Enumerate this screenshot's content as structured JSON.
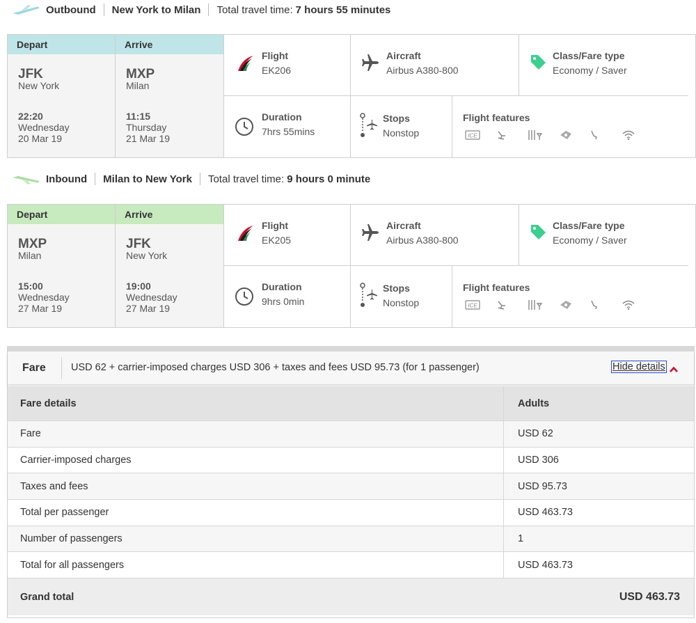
{
  "outbound": {
    "direction": "Outbound",
    "route": "New York to Milan",
    "travel_time_label": "Total travel time:",
    "travel_time_value": "7 hours 55 minutes",
    "depart_header": "Depart",
    "arrive_header": "Arrive",
    "depart": {
      "code": "JFK",
      "city": "New York",
      "time": "22:20",
      "day": "Wednesday",
      "date": "20 Mar 19"
    },
    "arrive": {
      "code": "MXP",
      "city": "Milan",
      "time": "11:15",
      "day": "Thursday",
      "date": "21 Mar 19"
    },
    "flight_label": "Flight",
    "flight": "EK206",
    "aircraft_label": "Aircraft",
    "aircraft": "Airbus A380-800",
    "fare_label": "Class/Fare type",
    "fare_type": "Economy / Saver",
    "duration_label": "Duration",
    "duration": "7hrs 55mins",
    "stops_label": "Stops",
    "stops": "Nonstop",
    "features_label": "Flight features"
  },
  "inbound": {
    "direction": "Inbound",
    "route": "Milan to New York",
    "travel_time_label": "Total travel time:",
    "travel_time_value": "9 hours 0 minute",
    "depart_header": "Depart",
    "arrive_header": "Arrive",
    "depart": {
      "code": "MXP",
      "city": "Milan",
      "time": "15:00",
      "day": "Wednesday",
      "date": "27 Mar 19"
    },
    "arrive": {
      "code": "JFK",
      "city": "New York",
      "time": "19:00",
      "day": "Wednesday",
      "date": "27 Mar 19"
    },
    "flight_label": "Flight",
    "flight": "EK205",
    "aircraft_label": "Aircraft",
    "aircraft": "Airbus A380-800",
    "fare_label": "Class/Fare type",
    "fare_type": "Economy / Saver",
    "duration_label": "Duration",
    "duration": "9hrs 0min",
    "stops_label": "Stops",
    "stops": "Nonstop",
    "features_label": "Flight features"
  },
  "feature_icons": [
    "ice-entertainment-icon",
    "seat-icon",
    "dining-icon",
    "amenity-kit-icon",
    "power-icon",
    "wifi-icon"
  ],
  "fare": {
    "label": "Fare",
    "summary": "USD 62 + carrier-imposed charges USD 306 + taxes and fees USD 95.73 (for 1 passenger)",
    "hide_details": "Hide details",
    "table_header": {
      "c1": "Fare details",
      "c2": "Adults"
    },
    "rows": [
      {
        "label": "Fare",
        "value": "USD 62"
      },
      {
        "label": "Carrier-imposed charges",
        "value": "USD 306"
      },
      {
        "label": "Taxes and fees",
        "value": "USD 95.73"
      },
      {
        "label": "Total per passenger",
        "value": "USD 463.73"
      },
      {
        "label": "Number of passengers",
        "value": "1"
      },
      {
        "label": "Total for all passengers",
        "value": "USD 463.73"
      }
    ],
    "grand_total_label": "Grand total",
    "grand_total_value": "USD 463.73"
  },
  "colors": {
    "outbound_header": "#bfe5e8",
    "inbound_header": "#c7eabf",
    "fare_tag": "#3ccf8e",
    "chevron": "#c8102e"
  }
}
